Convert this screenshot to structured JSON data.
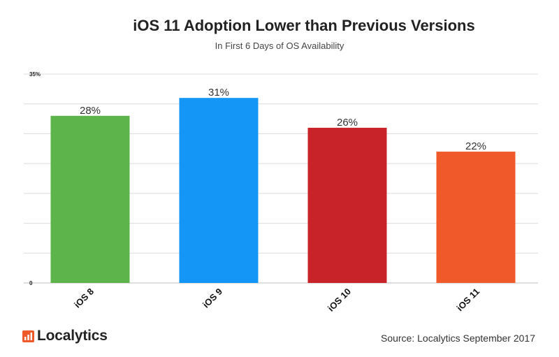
{
  "chart_data": {
    "type": "bar",
    "title": "iOS 11 Adoption Lower than Previous Versions",
    "subtitle": "In First 6 Days of OS Availability",
    "categories": [
      "iOS 8",
      "iOS 9",
      "iOS 10",
      "iOS 11"
    ],
    "values": [
      28,
      31,
      26,
      22
    ],
    "data_labels": [
      "28%",
      "31%",
      "26%",
      "22%"
    ],
    "colors": [
      "#5db44a",
      "#1396f5",
      "#c82328",
      "#f05a2a"
    ],
    "ylim": [
      0,
      35
    ],
    "y_tick_labels": [
      "35%",
      "0"
    ],
    "grid": true,
    "legend": "none",
    "xlabel": "",
    "ylabel": ""
  },
  "logo": {
    "text": "Localytics",
    "color": "#f05a2a"
  },
  "source": "Source: Localytics September 2017"
}
